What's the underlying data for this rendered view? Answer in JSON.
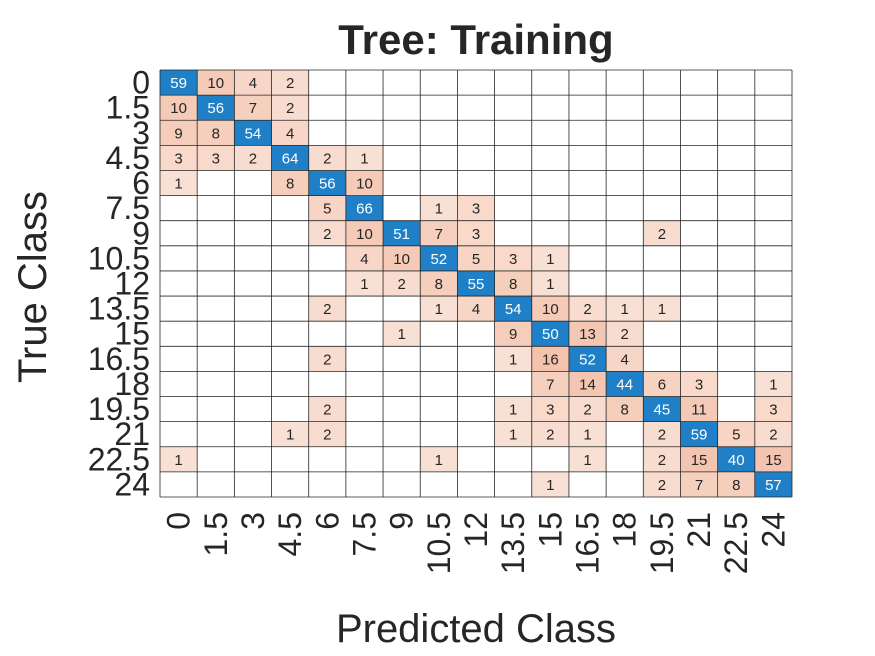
{
  "chart_data": {
    "type": "heatmap",
    "title": "Tree: Training",
    "xlabel": "Predicted Class",
    "ylabel": "True Class",
    "classes": [
      "0",
      "1.5",
      "3",
      "4.5",
      "6",
      "7.5",
      "9",
      "10.5",
      "12",
      "13.5",
      "15",
      "16.5",
      "18",
      "19.5",
      "21",
      "22.5",
      "24"
    ],
    "matrix": [
      [
        59,
        10,
        4,
        2,
        0,
        0,
        0,
        0,
        0,
        0,
        0,
        0,
        0,
        0,
        0,
        0,
        0
      ],
      [
        10,
        56,
        7,
        2,
        0,
        0,
        0,
        0,
        0,
        0,
        0,
        0,
        0,
        0,
        0,
        0,
        0
      ],
      [
        9,
        8,
        54,
        4,
        0,
        0,
        0,
        0,
        0,
        0,
        0,
        0,
        0,
        0,
        0,
        0,
        0
      ],
      [
        3,
        3,
        2,
        64,
        2,
        1,
        0,
        0,
        0,
        0,
        0,
        0,
        0,
        0,
        0,
        0,
        0
      ],
      [
        1,
        0,
        0,
        8,
        56,
        10,
        0,
        0,
        0,
        0,
        0,
        0,
        0,
        0,
        0,
        0,
        0
      ],
      [
        0,
        0,
        0,
        0,
        5,
        66,
        0,
        1,
        3,
        0,
        0,
        0,
        0,
        0,
        0,
        0,
        0
      ],
      [
        0,
        0,
        0,
        0,
        2,
        10,
        51,
        7,
        3,
        0,
        0,
        0,
        0,
        2,
        0,
        0,
        0
      ],
      [
        0,
        0,
        0,
        0,
        0,
        4,
        10,
        52,
        5,
        3,
        1,
        0,
        0,
        0,
        0,
        0,
        0
      ],
      [
        0,
        0,
        0,
        0,
        0,
        1,
        2,
        8,
        55,
        8,
        1,
        0,
        0,
        0,
        0,
        0,
        0
      ],
      [
        0,
        0,
        0,
        0,
        2,
        0,
        0,
        1,
        4,
        54,
        10,
        2,
        1,
        1,
        0,
        0,
        0
      ],
      [
        0,
        0,
        0,
        0,
        0,
        0,
        1,
        0,
        0,
        9,
        50,
        13,
        2,
        0,
        0,
        0,
        0
      ],
      [
        0,
        0,
        0,
        0,
        2,
        0,
        0,
        0,
        0,
        1,
        16,
        52,
        4,
        0,
        0,
        0,
        0
      ],
      [
        0,
        0,
        0,
        0,
        0,
        0,
        0,
        0,
        0,
        0,
        7,
        14,
        44,
        6,
        3,
        0,
        1
      ],
      [
        0,
        0,
        0,
        0,
        2,
        0,
        0,
        0,
        0,
        1,
        3,
        2,
        8,
        45,
        11,
        0,
        3
      ],
      [
        0,
        0,
        0,
        1,
        2,
        0,
        0,
        0,
        0,
        1,
        2,
        1,
        0,
        2,
        59,
        5,
        2
      ],
      [
        1,
        0,
        0,
        0,
        0,
        0,
        0,
        1,
        0,
        0,
        0,
        1,
        0,
        2,
        15,
        40,
        15
      ],
      [
        0,
        0,
        0,
        0,
        0,
        0,
        0,
        0,
        0,
        0,
        1,
        0,
        0,
        2,
        7,
        8,
        57
      ]
    ],
    "grid": true,
    "colors": {
      "diagonal": "#1f80c8",
      "off_diagonal_light": "#fbe9e1",
      "off_diagonal_dark": "#f3c3ad",
      "gridline": "#262626",
      "text": "#262626",
      "diagonal_text": "#ffffff"
    }
  }
}
